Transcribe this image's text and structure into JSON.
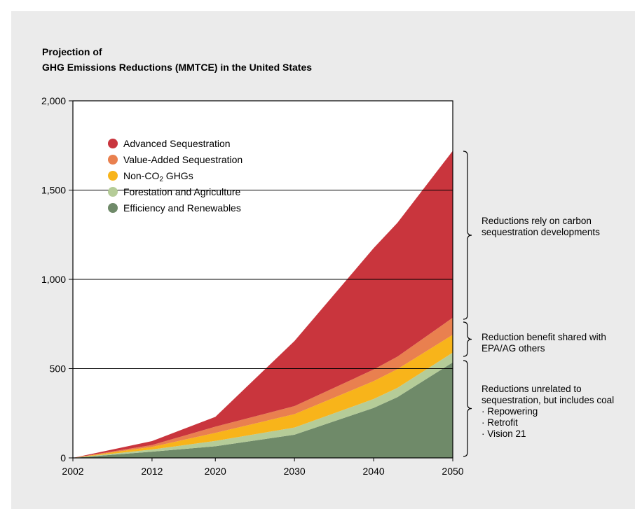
{
  "chart_data": {
    "type": "area",
    "stacked": true,
    "title_line1": "Projection of",
    "title_line2": "GHG Emissions Reductions (MMTCE) in the United States",
    "xlabel": "",
    "ylabel": "",
    "x": [
      2002,
      2012,
      2020,
      2030,
      2040,
      2043,
      2050
    ],
    "x_ticks": [
      "2002",
      "2012",
      "2020",
      "2030",
      "2040",
      "2050"
    ],
    "y_ticks": [
      "0",
      "500",
      "1,000",
      "1,500",
      "2,000"
    ],
    "ylim": [
      0,
      2000
    ],
    "grid": "horizontal at 500, 1,000, 1,500",
    "legend_position": "top-left inside plot",
    "series": [
      {
        "name": "Efficiency and Renewables",
        "color": "#6f8a69",
        "values": [
          0,
          35,
          65,
          130,
          280,
          340,
          535
        ]
      },
      {
        "name": "Forestation and Agriculture",
        "color": "#b5cc98",
        "values": [
          0,
          12,
          30,
          40,
          50,
          52,
          55
        ]
      },
      {
        "name": "Non-CO2 GHGs",
        "color": "#f8b41a",
        "values": [
          0,
          15,
          45,
          75,
          100,
          105,
          100
        ]
      },
      {
        "name": "Value-Added Sequestration",
        "color": "#e9804f",
        "values": [
          0,
          10,
          35,
          45,
          65,
          70,
          95
        ]
      },
      {
        "name": "Advanced Sequestration",
        "color": "#c9353d",
        "values": [
          0,
          22,
          55,
          365,
          680,
          750,
          935
        ]
      }
    ],
    "annotations": [
      {
        "lines": [
          "Reductions rely on carbon",
          "sequestration developments"
        ]
      },
      {
        "lines": [
          "Reduction benefit shared with",
          "EPA/AG others"
        ]
      },
      {
        "lines": [
          "Reductions unrelated to",
          "sequestration, but includes coal",
          "· Repowering",
          "· Retrofit",
          "· Vision 21"
        ]
      }
    ]
  }
}
